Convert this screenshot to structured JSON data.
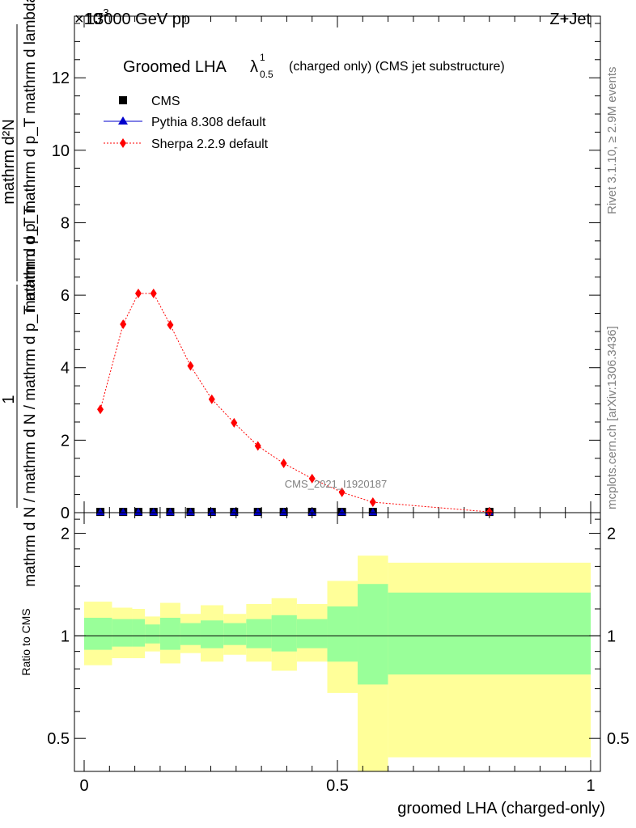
{
  "header": {
    "left": "13000 GeV pp",
    "right": "Z+Jet",
    "exponent_prefix": "×10",
    "exponent": "-3"
  },
  "side": {
    "rivet": "Rivet 3.1.10, ≥ 2.9M events",
    "mcplots": "mcplots.cern.ch [arXiv:1306.3436]"
  },
  "chart_data": [
    {
      "type": "line",
      "title_main": "Groomed LHA",
      "title_symbol": "λ",
      "title_sup": "1",
      "title_sub": "0.5",
      "title_rest": "(charged only) (CMS jet substructure)",
      "watermark": "CMS_2021_I1920187",
      "ylabel_num": "mathrm d²N",
      "ylabel_den": "mathrm d p_T mathrm d p_T mathrm d lambda",
      "ylabel_pre_num": "1",
      "ylabel_pre_den": "mathrm d N / mathrm d N / mathrm d p_T mathrm d p_T",
      "ylim": [
        0,
        13.7
      ],
      "y_scale_note": "values ×10^-3",
      "yticks": [
        "0",
        "2",
        "4",
        "6",
        "8",
        "10",
        "12"
      ],
      "legend": {
        "placement": "top-left",
        "entries": [
          "CMS",
          "Pythia 8.308 default",
          "Sherpa 2.2.9 default"
        ]
      },
      "x": [
        0.032,
        0.077,
        0.107,
        0.137,
        0.17,
        0.21,
        0.252,
        0.296,
        0.343,
        0.394,
        0.45,
        0.509,
        0.57,
        0.8
      ],
      "series": [
        {
          "name": "CMS",
          "color": "#000000",
          "marker": "square",
          "values": [
            0.02,
            0.02,
            0.02,
            0.02,
            0.02,
            0.02,
            0.02,
            0.02,
            0.02,
            0.02,
            0.02,
            0.02,
            0.02,
            0.02
          ]
        },
        {
          "name": "Pythia 8.308 default",
          "color": "#0000cc",
          "marker": "triangle",
          "values": [
            0.02,
            0.02,
            0.02,
            0.02,
            0.02,
            0.02,
            0.02,
            0.02,
            0.02,
            0.02,
            0.02,
            0.02,
            0.02,
            0.02
          ]
        },
        {
          "name": "Sherpa 2.2.9 default",
          "color": "#ff0000",
          "marker": "diamond",
          "values": [
            2.85,
            5.2,
            6.05,
            6.05,
            5.18,
            4.05,
            3.13,
            2.48,
            1.84,
            1.36,
            0.94,
            0.56,
            0.29,
            0.02
          ]
        }
      ]
    },
    {
      "type": "area",
      "ylabel": "Ratio to CMS",
      "xlabel": "groomed LHA (charged-only)",
      "xlim": [
        0,
        1
      ],
      "xticks": [
        "0",
        "0.5",
        "1"
      ],
      "ylim": [
        0.4,
        2.3
      ],
      "yscale": "log",
      "yticks_left": [
        "0.5",
        "1",
        "2"
      ],
      "yticks_right": [
        "0.5",
        "1",
        "2"
      ],
      "band_colors": {
        "inner": "#99ff99",
        "outer": "#ffff99"
      },
      "bins": [
        {
          "lo": 0.0,
          "hi": 0.055,
          "inner": [
            0.91,
            1.13
          ],
          "outer": [
            0.82,
            1.26
          ]
        },
        {
          "lo": 0.055,
          "hi": 0.095,
          "inner": [
            0.93,
            1.12
          ],
          "outer": [
            0.86,
            1.21
          ]
        },
        {
          "lo": 0.095,
          "hi": 0.12,
          "inner": [
            0.93,
            1.12
          ],
          "outer": [
            0.86,
            1.2
          ]
        },
        {
          "lo": 0.12,
          "hi": 0.15,
          "inner": [
            0.95,
            1.08
          ],
          "outer": [
            0.9,
            1.14
          ]
        },
        {
          "lo": 0.15,
          "hi": 0.19,
          "inner": [
            0.91,
            1.13
          ],
          "outer": [
            0.83,
            1.25
          ]
        },
        {
          "lo": 0.19,
          "hi": 0.23,
          "inner": [
            0.94,
            1.09
          ],
          "outer": [
            0.89,
            1.16
          ]
        },
        {
          "lo": 0.23,
          "hi": 0.275,
          "inner": [
            0.92,
            1.11
          ],
          "outer": [
            0.84,
            1.23
          ]
        },
        {
          "lo": 0.275,
          "hi": 0.32,
          "inner": [
            0.94,
            1.09
          ],
          "outer": [
            0.88,
            1.16
          ]
        },
        {
          "lo": 0.32,
          "hi": 0.37,
          "inner": [
            0.92,
            1.12
          ],
          "outer": [
            0.84,
            1.24
          ]
        },
        {
          "lo": 0.37,
          "hi": 0.42,
          "inner": [
            0.9,
            1.15
          ],
          "outer": [
            0.79,
            1.29
          ]
        },
        {
          "lo": 0.42,
          "hi": 0.48,
          "inner": [
            0.92,
            1.12
          ],
          "outer": [
            0.84,
            1.24
          ]
        },
        {
          "lo": 0.48,
          "hi": 0.54,
          "inner": [
            0.84,
            1.22
          ],
          "outer": [
            0.68,
            1.45
          ]
        },
        {
          "lo": 0.54,
          "hi": 0.6,
          "inner": [
            0.72,
            1.42
          ],
          "outer": [
            0.3,
            1.72
          ]
        },
        {
          "lo": 0.6,
          "hi": 1.0,
          "inner": [
            0.77,
            1.34
          ],
          "outer": [
            0.44,
            1.64
          ]
        }
      ],
      "reference": 1.0
    }
  ]
}
